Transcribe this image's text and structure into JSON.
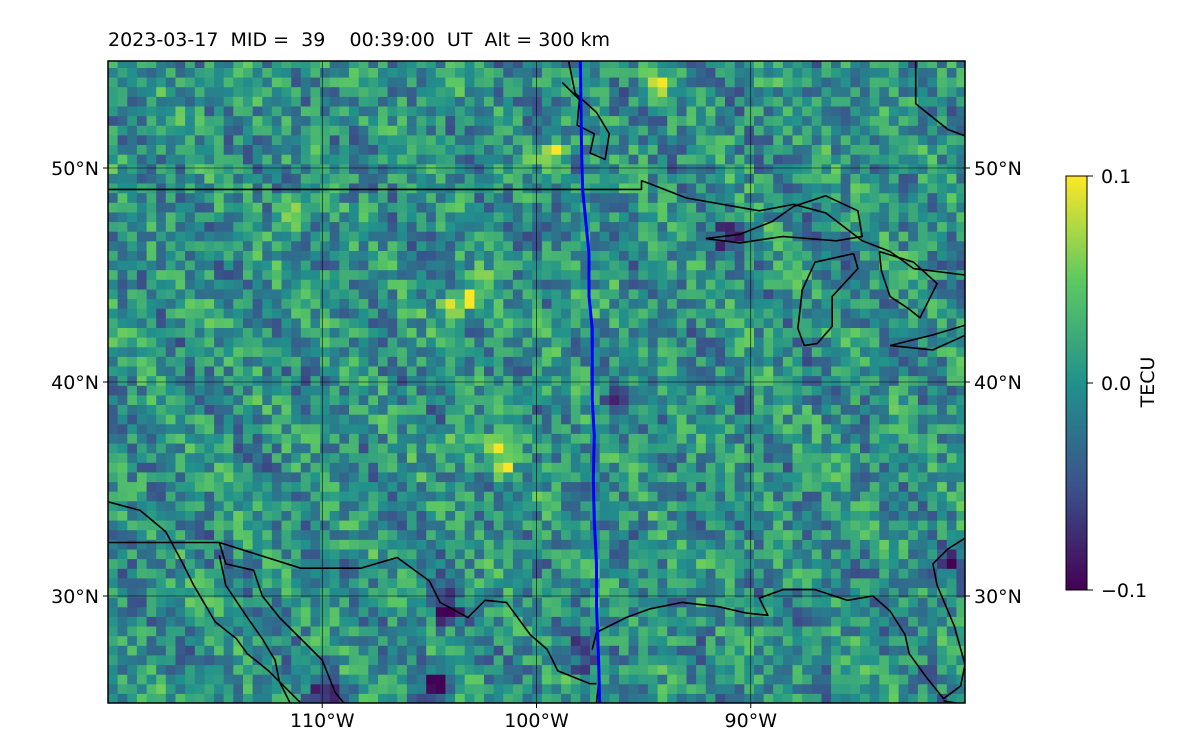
{
  "title": "2023-03-17  MID =  39    00:39:00  UT  Alt = 300 km",
  "colorbar": {
    "label": "TECU",
    "ticks": [
      {
        "value": 0.1,
        "label": "0.1"
      },
      {
        "value": 0.0,
        "label": "0.0"
      },
      {
        "value": -0.1,
        "label": "−0.1"
      }
    ],
    "colormap": "viridis",
    "colors": [
      "#440154",
      "#3b528b",
      "#21918c",
      "#5ec962",
      "#fde725"
    ]
  },
  "chart_data": {
    "type": "heatmap",
    "title": "2023-03-17  MID =  39    00:39:00  UT  Alt = 300 km",
    "xlabel": "",
    "ylabel": "",
    "xlim": [
      -120,
      -80
    ],
    "ylim": [
      25,
      55
    ],
    "grid": true,
    "x_ticks": [
      {
        "value": -110,
        "label": "110°W"
      },
      {
        "value": -100,
        "label": "100°W"
      },
      {
        "value": -90,
        "label": "90°W"
      }
    ],
    "y_ticks": [
      {
        "value": 50,
        "label": "50°N"
      },
      {
        "value": 40,
        "label": "40°N"
      },
      {
        "value": 30,
        "label": "30°N"
      }
    ],
    "value_range": [
      -0.1,
      0.1
    ],
    "value_unit": "TECU",
    "hotspots": [
      {
        "lon": -104,
        "lat": 43.3,
        "value": 0.1
      },
      {
        "lon": -103,
        "lat": 44.0,
        "value": 0.08
      },
      {
        "lon": -99.4,
        "lat": 50.4,
        "value": 0.1
      },
      {
        "lon": -111.5,
        "lat": 47.8,
        "value": 0.09
      },
      {
        "lon": -101.9,
        "lat": 36.2,
        "value": 0.09
      },
      {
        "lon": -103.8,
        "lat": 36.6,
        "value": 0.08
      },
      {
        "lon": -98.4,
        "lat": 43.3,
        "value": 0.08
      },
      {
        "lon": -94.5,
        "lat": 53.5,
        "value": 0.06
      }
    ],
    "coldspots": [
      {
        "lon": -105.0,
        "lat": 25.8,
        "value": -0.1
      },
      {
        "lon": -110.0,
        "lat": 25.3,
        "value": -0.1
      },
      {
        "lon": -91.0,
        "lat": 46.5,
        "value": -0.1
      },
      {
        "lon": -96.5,
        "lat": 38.8,
        "value": -0.09
      },
      {
        "lon": -104.5,
        "lat": 29.2,
        "value": -0.09
      },
      {
        "lon": -98.0,
        "lat": 27.0,
        "value": -0.08
      },
      {
        "lon": -99.5,
        "lat": 47.2,
        "value": -0.08
      },
      {
        "lon": -81.0,
        "lat": 31.5,
        "value": -0.07
      }
    ],
    "series": [
      {
        "type": "line",
        "color": "#0000ff",
        "points": [
          [
            -97.95,
            55
          ],
          [
            -97.9,
            51
          ],
          [
            -97.85,
            49
          ],
          [
            -97.7,
            47.5
          ],
          [
            -97.55,
            46
          ],
          [
            -97.55,
            44
          ],
          [
            -97.4,
            42.5
          ],
          [
            -97.4,
            41
          ],
          [
            -97.4,
            39.2
          ],
          [
            -97.3,
            37.5
          ],
          [
            -97.35,
            35.5
          ],
          [
            -97.3,
            33.5
          ],
          [
            -97.2,
            31.5
          ],
          [
            -97.2,
            29.5
          ],
          [
            -97.1,
            27
          ],
          [
            -97.05,
            25
          ]
        ]
      }
    ],
    "boundaries": {
      "canada_border": [
        [
          -120,
          49
        ],
        [
          -95.1,
          49
        ],
        [
          -95.1,
          49.4
        ],
        [
          -94.8,
          49.3
        ],
        [
          -93,
          48.6
        ],
        [
          -89.6,
          48.0
        ],
        [
          -88.0,
          48.3
        ],
        [
          -86.5,
          47.9
        ],
        [
          -84.8,
          46.6
        ],
        [
          -83.5,
          46.1
        ],
        [
          -82.4,
          45.3
        ],
        [
          -80,
          45
        ]
      ],
      "hudson": [
        [
          -98.8,
          54.0
        ],
        [
          -98.0,
          53.2
        ],
        [
          -98.1,
          52.0
        ],
        [
          -97.3,
          51.6
        ],
        [
          -97.5,
          50.7
        ],
        [
          -96.8,
          50.4
        ],
        [
          -96.6,
          51.6
        ],
        [
          -97.2,
          52.6
        ],
        [
          -98.2,
          53.5
        ],
        [
          -98.5,
          55
        ]
      ],
      "ne_corner": [
        [
          -82.3,
          55
        ],
        [
          -82.3,
          53.0
        ],
        [
          -80.8,
          51.8
        ],
        [
          -80,
          51.5
        ]
      ],
      "lake_superior": [
        [
          -92.1,
          46.7
        ],
        [
          -90.5,
          46.9
        ],
        [
          -89.0,
          47.5
        ],
        [
          -88.0,
          48.2
        ],
        [
          -86.5,
          48.7
        ],
        [
          -85.0,
          48.0
        ],
        [
          -84.8,
          46.8
        ],
        [
          -86.0,
          46.6
        ],
        [
          -88.5,
          46.8
        ],
        [
          -90.5,
          46.5
        ],
        [
          -92.1,
          46.7
        ]
      ],
      "lake_michigan": [
        [
          -85.2,
          46.0
        ],
        [
          -87.0,
          45.6
        ],
        [
          -87.6,
          44.3
        ],
        [
          -87.8,
          42.5
        ],
        [
          -87.5,
          41.7
        ],
        [
          -86.9,
          41.8
        ],
        [
          -86.2,
          42.6
        ],
        [
          -86.2,
          44.0
        ],
        [
          -85.0,
          45.3
        ],
        [
          -85.2,
          46.0
        ]
      ],
      "lake_huron": [
        [
          -84.0,
          46.1
        ],
        [
          -82.4,
          45.6
        ],
        [
          -81.3,
          44.6
        ],
        [
          -82.1,
          43.0
        ],
        [
          -82.6,
          43.4
        ],
        [
          -83.5,
          44.0
        ],
        [
          -83.9,
          45.2
        ],
        [
          -84.0,
          46.1
        ]
      ],
      "lake_erie": [
        [
          -83.5,
          41.7
        ],
        [
          -81.5,
          42.2
        ],
        [
          -79.5,
          42.8
        ],
        [
          -79.5,
          42.4
        ],
        [
          -81.5,
          41.5
        ],
        [
          -83.5,
          41.7
        ]
      ],
      "gulf_coast": [
        [
          -97.4,
          27.5
        ],
        [
          -97.2,
          28.3
        ],
        [
          -95.8,
          29.0
        ],
        [
          -94.7,
          29.4
        ],
        [
          -93.2,
          29.7
        ],
        [
          -91.5,
          29.5
        ],
        [
          -90.2,
          29.2
        ],
        [
          -89.2,
          29.1
        ],
        [
          -89.6,
          29.9
        ],
        [
          -88.5,
          30.3
        ],
        [
          -87.0,
          30.3
        ],
        [
          -85.5,
          29.8
        ],
        [
          -84.3,
          30.0
        ],
        [
          -83.5,
          29.3
        ],
        [
          -82.8,
          28.2
        ],
        [
          -82.6,
          27.3
        ],
        [
          -81.8,
          26.2
        ],
        [
          -81.0,
          25.2
        ],
        [
          -80.2,
          25.8
        ],
        [
          -80.0,
          26.8
        ],
        [
          -80.5,
          28.6
        ],
        [
          -81.3,
          30.5
        ],
        [
          -81.5,
          31.5
        ],
        [
          -80.8,
          32.2
        ],
        [
          -80,
          32.7
        ]
      ],
      "mexico_border": [
        [
          -120,
          32.5
        ],
        [
          -117.1,
          32.5
        ],
        [
          -114.8,
          32.5
        ],
        [
          -111,
          31.3
        ],
        [
          -108.2,
          31.3
        ],
        [
          -106.5,
          31.8
        ],
        [
          -105.0,
          30.7
        ],
        [
          -104.5,
          29.7
        ],
        [
          -103.2,
          29.0
        ],
        [
          -102.4,
          29.8
        ],
        [
          -101.4,
          29.7
        ],
        [
          -100.3,
          28.2
        ],
        [
          -99.5,
          27.5
        ],
        [
          -99.0,
          26.5
        ],
        [
          -97.5,
          25.9
        ],
        [
          -97.2,
          25.9
        ]
      ],
      "baja_gulf": [
        [
          -114.8,
          32.5
        ],
        [
          -114.5,
          31.5
        ],
        [
          -113.2,
          31.2
        ],
        [
          -112.8,
          30.0
        ],
        [
          -112.0,
          29.0
        ],
        [
          -110.8,
          27.8
        ],
        [
          -110.0,
          27.0
        ],
        [
          -109.4,
          25.5
        ],
        [
          -109.0,
          25
        ]
      ],
      "baja_peninsula": [
        [
          -114.8,
          31.9
        ],
        [
          -114.5,
          30.5
        ],
        [
          -113.5,
          29.0
        ],
        [
          -112.8,
          28.0
        ],
        [
          -112.2,
          27.0
        ],
        [
          -112.0,
          26.0
        ],
        [
          -111.5,
          25
        ]
      ],
      "pacific": [
        [
          -120,
          34.4
        ],
        [
          -118.5,
          34.0
        ],
        [
          -117.3,
          33.0
        ],
        [
          -116.5,
          31.5
        ],
        [
          -116.0,
          30.5
        ],
        [
          -115.0,
          28.8
        ],
        [
          -114.0,
          28.0
        ],
        [
          -113.5,
          27.3
        ],
        [
          -112.5,
          26.5
        ],
        [
          -111.5,
          25.5
        ],
        [
          -111.0,
          25
        ]
      ],
      "mexico_gulf_coast": [
        [
          -97.1,
          25.9
        ],
        [
          -97.2,
          25
        ]
      ],
      "florida_east": [
        [
          -81.0,
          25.1
        ],
        [
          -80.4,
          25.0
        ]
      ]
    }
  }
}
